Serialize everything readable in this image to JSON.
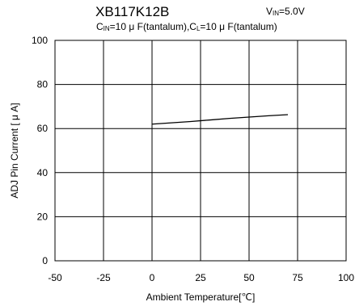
{
  "chart_data": {
    "type": "line",
    "title": "XB117K12B",
    "conditions": {
      "vin_main": "V",
      "vin_sub": "IN",
      "vin_value": "=5.0V",
      "cin_main": "C",
      "cin_sub": "IN",
      "cin_value": "=10 μ F(tantalum),C",
      "cl_sub": "L",
      "cl_value": "=10 μ F(tantalum)"
    },
    "xlabel": "Ambient  Temperature[℃]",
    "ylabel": "ADJ Pin Current [ μ A]",
    "xlim": [
      -50,
      100
    ],
    "ylim": [
      0,
      100
    ],
    "xticks": [
      -50,
      -25,
      0,
      25,
      50,
      75,
      100
    ],
    "yticks": [
      0,
      20,
      40,
      60,
      80,
      100
    ],
    "grid": true,
    "series": [
      {
        "x": [
          0,
          10,
          20,
          30,
          40,
          50,
          60,
          70
        ],
        "y": [
          62,
          62.6,
          63.2,
          63.9,
          64.6,
          65.2,
          65.8,
          66.3
        ]
      }
    ]
  }
}
